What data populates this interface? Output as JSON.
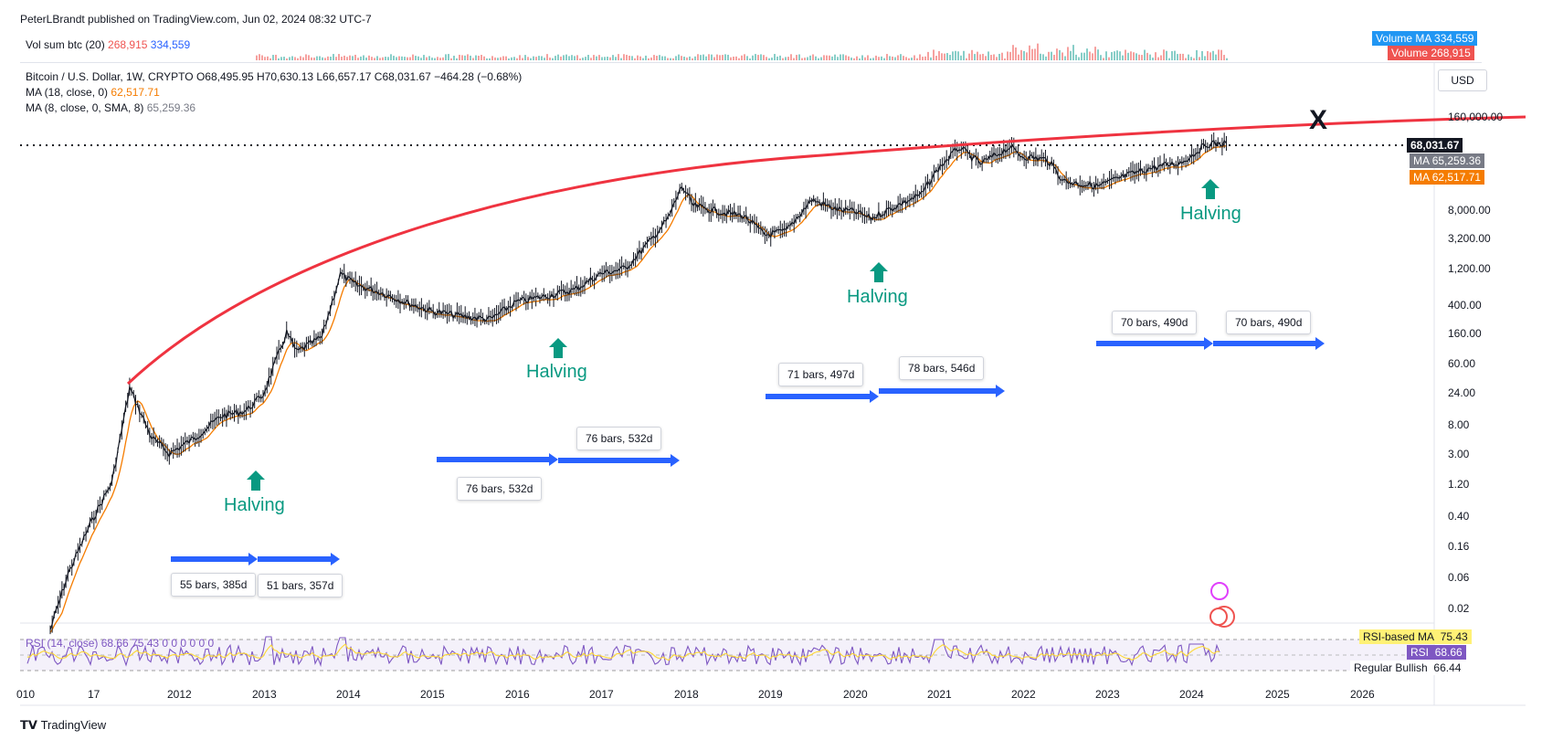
{
  "header": {
    "publisher": "PeterLBrandt published on TradingView.com, Jun 02, 2024 08:32 UTC-7"
  },
  "volume_legend": {
    "name": "Vol sum btc (20)",
    "value1": "268,915",
    "value2": "334,559"
  },
  "volume_tags": [
    {
      "label": "Volume MA",
      "value": "334,559",
      "color": "#2196f3"
    },
    {
      "label": "Volume",
      "value": "268,915",
      "color": "#ef5350"
    }
  ],
  "price_legend": {
    "line1": "Bitcoin / U.S. Dollar, 1W, CRYPTO  O68,495.95  H70,630.13  L66,657.17  C68,031.67  −464.28 (−0.68%)",
    "ma18_label": "MA (18, close, 0)",
    "ma18_value": "62,517.71",
    "ma8_label": "MA (8, close, 0, SMA, 8)",
    "ma8_value": "65,259.36"
  },
  "currency": "USD",
  "price_tags": [
    {
      "label": "",
      "value": "68,031.67",
      "color": "#131722"
    },
    {
      "label": "MA",
      "value": "65,259.36",
      "color": "#787b86"
    },
    {
      "label": "MA",
      "value": "62,517.71",
      "color": "#f57c00"
    }
  ],
  "rsi_legend": {
    "text": "RSI (14, close)  68.66  75.43  0  0  0  0  0  0"
  },
  "rsi_tags": [
    {
      "label": "RSI-based MA",
      "value": "75.43",
      "color": "#fff176",
      "text": "#131722"
    },
    {
      "label": "RSI",
      "value": "68.66",
      "color": "#7e57c2",
      "text": "#ffffff"
    },
    {
      "label": "Regular Bullish",
      "value": "66.44",
      "color": "#ffffff",
      "text": "#131722"
    }
  ],
  "footer": {
    "logo_text": "TradingView"
  },
  "annotations": {
    "halvings": [
      "Halving",
      "Halving",
      "Halving",
      "Halving"
    ],
    "x_mark": "X",
    "bars_labels": [
      "55 bars, 385d",
      "51 bars, 357d",
      "76 bars, 532d",
      "76 bars, 532d",
      "71 bars, 497d",
      "78 bars, 546d",
      "70 bars, 490d",
      "70 bars, 490d"
    ]
  },
  "chart_data": {
    "type": "candlestick-log",
    "title": "Bitcoin / U.S. Dollar, 1W, CRYPTO",
    "y_scale": "log",
    "y_ticks": [
      "160,000.00",
      "8,000.00",
      "3,200.00",
      "1,200.00",
      "400.00",
      "160.00",
      "60.00",
      "24.00",
      "8.00",
      "3.00",
      "1.20",
      "0.40",
      "0.16",
      "0.06",
      "0.02"
    ],
    "x_ticks": [
      "010",
      "17",
      "2012",
      "2013",
      "2014",
      "2015",
      "2016",
      "2017",
      "2018",
      "2019",
      "2020",
      "2021",
      "2022",
      "2023",
      "2024",
      "2025",
      "2026"
    ],
    "current_price": 68031.67,
    "series": [
      {
        "name": "Bitcoin / U.S. Dollar",
        "x": [
          2010.55,
          2010.75,
          2011.0,
          2011.25,
          2011.45,
          2011.7,
          2011.9,
          2012.2,
          2012.5,
          2012.8,
          2013.0,
          2013.28,
          2013.4,
          2013.7,
          2013.92,
          2014.1,
          2014.4,
          2014.7,
          2015.0,
          2015.4,
          2015.7,
          2016.0,
          2016.4,
          2016.7,
          2017.0,
          2017.3,
          2017.6,
          2017.8,
          2017.96,
          2018.1,
          2018.4,
          2018.7,
          2018.95,
          2019.2,
          2019.5,
          2019.8,
          2020.0,
          2020.2,
          2020.5,
          2020.8,
          2021.0,
          2021.25,
          2021.5,
          2021.85,
          2022.0,
          2022.3,
          2022.5,
          2022.9,
          2023.2,
          2023.5,
          2023.9,
          2024.2,
          2024.42
        ],
        "values": [
          0.01,
          0.06,
          0.3,
          1.2,
          25,
          5,
          3,
          5,
          10,
          12,
          20,
          150,
          80,
          130,
          1000,
          700,
          550,
          400,
          300,
          250,
          230,
          400,
          500,
          600,
          1000,
          1200,
          3000,
          6000,
          17000,
          9000,
          7500,
          6500,
          3500,
          4000,
          11000,
          8000,
          7500,
          6000,
          9000,
          13000,
          30000,
          60000,
          35000,
          60000,
          45000,
          40000,
          20000,
          17000,
          23000,
          30000,
          37000,
          67000,
          68031.67
        ]
      },
      {
        "name": "MA (18, close, 0)",
        "value": 62517.71
      },
      {
        "name": "MA (8, close, 0, SMA, 8)",
        "value": 65259.36
      }
    ],
    "rsi_value": 68.66,
    "rsi_ma_value": 75.43
  }
}
